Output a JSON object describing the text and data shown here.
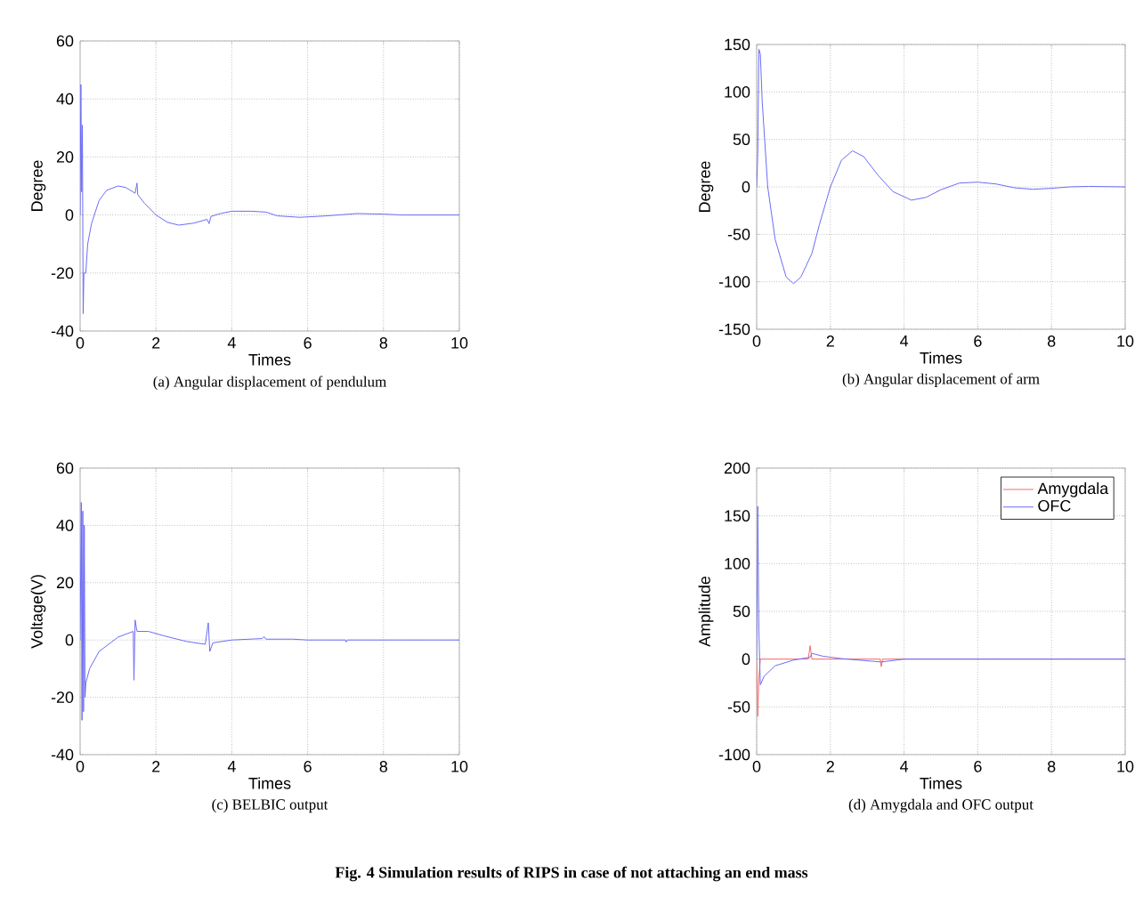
{
  "chart_data": [
    {
      "type": "line",
      "title": "(a)  Angular  displacement  of  pendulum",
      "xlabel": "Times",
      "ylabel": "Degree",
      "xlim": [
        0,
        10
      ],
      "ylim": [
        -40,
        60
      ],
      "xticks": [
        0,
        2,
        4,
        6,
        8,
        10
      ],
      "yticks": [
        -40,
        -20,
        0,
        20,
        40,
        60
      ],
      "grid": true,
      "series": [
        {
          "color": "#6b6bf5",
          "x": [
            0,
            0.02,
            0.04,
            0.06,
            0.08,
            0.1,
            0.15,
            0.2,
            0.3,
            0.5,
            0.7,
            1.0,
            1.2,
            1.45,
            1.5,
            1.52,
            1.7,
            2.0,
            2.3,
            2.6,
            3.0,
            3.35,
            3.4,
            3.45,
            3.7,
            4.0,
            4.5,
            4.9,
            5.2,
            5.8,
            6.5,
            7.3,
            8.0,
            8.5,
            10
          ],
          "values": [
            0,
            45,
            8,
            31,
            -34,
            -20,
            -20,
            -10,
            -3,
            5,
            8.5,
            10,
            9.5,
            7.5,
            11,
            7,
            4,
            0,
            -2.5,
            -3.5,
            -2.8,
            -1.5,
            -3,
            -0.5,
            0.5,
            1.3,
            1.3,
            1,
            -0.3,
            -0.8,
            -0.3,
            0.5,
            0.3,
            0,
            0
          ]
        }
      ]
    },
    {
      "type": "line",
      "title": "(b)  Angular  displacement  of  arm",
      "xlabel": "Times",
      "ylabel": "Degree",
      "xlim": [
        0,
        10
      ],
      "ylim": [
        -150,
        150
      ],
      "xticks": [
        0,
        2,
        4,
        6,
        8,
        10
      ],
      "yticks": [
        -150,
        -100,
        -50,
        0,
        50,
        100,
        150
      ],
      "grid": true,
      "series": [
        {
          "color": "#6b6bf5",
          "x": [
            0,
            0.03,
            0.06,
            0.1,
            0.15,
            0.3,
            0.5,
            0.8,
            1.0,
            1.2,
            1.5,
            1.7,
            2.0,
            2.3,
            2.6,
            2.9,
            3.3,
            3.7,
            4.2,
            4.6,
            5.0,
            5.5,
            6.0,
            6.5,
            7.0,
            7.5,
            8.0,
            8.5,
            9.0,
            10
          ],
          "values": [
            0,
            35,
            145,
            140,
            90,
            0,
            -55,
            -95,
            -102,
            -95,
            -70,
            -40,
            0,
            28,
            38,
            32,
            12,
            -5,
            -14,
            -11,
            -3,
            4,
            5,
            3,
            -1,
            -2.5,
            -1.5,
            0,
            0.5,
            0
          ]
        }
      ]
    },
    {
      "type": "line",
      "title": "(c)  BELBIC  output",
      "xlabel": "Times",
      "ylabel": "Voltage(V)",
      "xlim": [
        0,
        10
      ],
      "ylim": [
        -40,
        60
      ],
      "xticks": [
        0,
        2,
        4,
        6,
        8,
        10
      ],
      "yticks": [
        -40,
        -20,
        0,
        20,
        40,
        60
      ],
      "grid": true,
      "series": [
        {
          "color": "#6b6bf5",
          "x": [
            0,
            0.03,
            0.05,
            0.07,
            0.09,
            0.11,
            0.13,
            0.15,
            0.25,
            0.5,
            1.0,
            1.4,
            1.42,
            1.45,
            1.5,
            1.8,
            2.2,
            2.8,
            3.3,
            3.38,
            3.42,
            3.5,
            4.0,
            4.8,
            4.85,
            4.9,
            5.6,
            6.0,
            7.0,
            7.02,
            7.05,
            10
          ],
          "values": [
            0,
            48,
            -28,
            45,
            -25,
            40,
            -20,
            -15,
            -10,
            -4,
            1,
            3,
            -14,
            7,
            3,
            3,
            1.5,
            -0.5,
            -1.5,
            6,
            -4,
            -1,
            0,
            0.5,
            1.2,
            0.3,
            0.3,
            0,
            0,
            -0.7,
            0,
            0
          ]
        }
      ]
    },
    {
      "type": "line",
      "title": "(d)  Amygdala  and  OFC  output",
      "xlabel": "Times",
      "ylabel": "Amplitude",
      "xlim": [
        0,
        10
      ],
      "ylim": [
        -100,
        200
      ],
      "xticks": [
        0,
        2,
        4,
        6,
        8,
        10
      ],
      "yticks": [
        -100,
        -50,
        0,
        50,
        100,
        150,
        200
      ],
      "grid": true,
      "legend": "top right",
      "annotations": [
        "Fig. 4  Simulation  results  of  RIPS  in  case  of  not  attaching  an  end  mass"
      ],
      "series": [
        {
          "name": "Amygdala",
          "color": "#f56b6b",
          "x": [
            0,
            0.03,
            0.06,
            0.1,
            1.4,
            1.45,
            1.5,
            3.35,
            3.38,
            3.42,
            10
          ],
          "values": [
            0,
            -60,
            -20,
            0,
            0,
            14,
            0,
            0,
            -8,
            0,
            0
          ]
        },
        {
          "name": "OFC",
          "color": "#6b6bf5",
          "x": [
            0,
            0.03,
            0.06,
            0.1,
            0.2,
            0.5,
            1.0,
            1.45,
            1.5,
            1.8,
            2.3,
            3.38,
            4.0,
            10
          ],
          "values": [
            0,
            160,
            30,
            -27,
            -18,
            -7,
            -1,
            2,
            6,
            3,
            0.5,
            -3,
            0,
            0
          ]
        }
      ]
    }
  ]
}
